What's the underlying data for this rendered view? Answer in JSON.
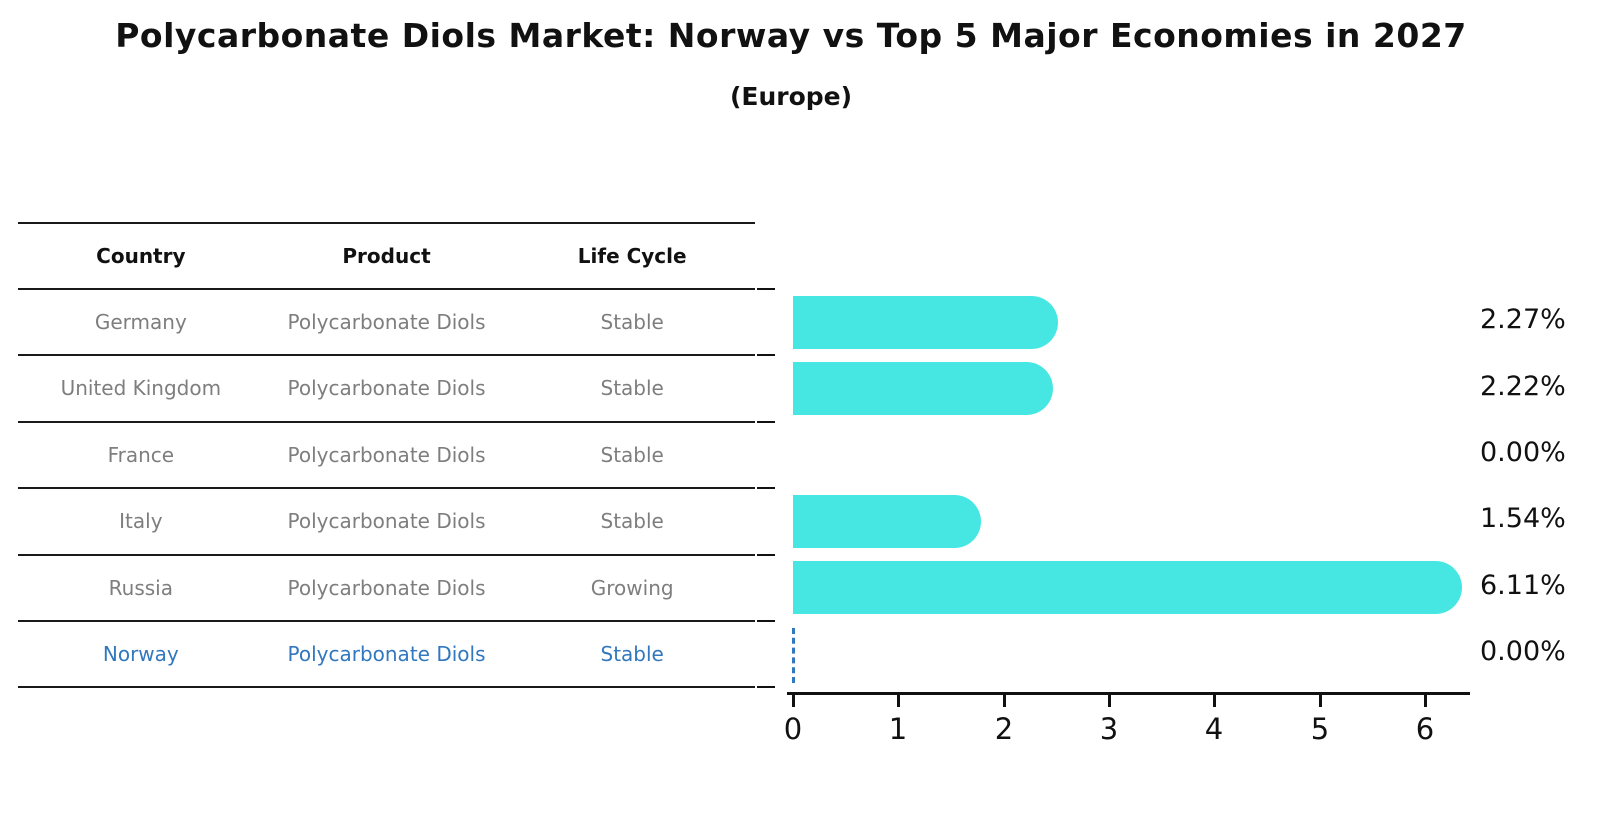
{
  "header": {
    "title": "Polycarbonate Diols Market: Norway vs Top 5 Major Economies in 2027",
    "subtitle": "(Europe)"
  },
  "table": {
    "headers": [
      "Country",
      "Product",
      "Life Cycle"
    ],
    "rows": [
      {
        "country": "Germany",
        "product": "Polycarbonate Diols",
        "life_cycle": "Stable",
        "highlighted": false
      },
      {
        "country": "United Kingdom",
        "product": "Polycarbonate Diols",
        "life_cycle": "Stable",
        "highlighted": false
      },
      {
        "country": "France",
        "product": "Polycarbonate Diols",
        "life_cycle": "Stable",
        "highlighted": false
      },
      {
        "country": "Italy",
        "product": "Polycarbonate Diols",
        "life_cycle": "Stable",
        "highlighted": false
      },
      {
        "country": "Russia",
        "product": "Polycarbonate Diols",
        "life_cycle": "Growing",
        "highlighted": false
      },
      {
        "country": "Norway",
        "product": "Polycarbonate Diols",
        "life_cycle": "Stable",
        "highlighted": true
      }
    ]
  },
  "chart_data": {
    "type": "bar",
    "orientation": "horizontal",
    "title": "Polycarbonate Diols Market: Norway vs Top 5 Major Economies in 2027 (Europe)",
    "categories": [
      "Germany",
      "United Kingdom",
      "France",
      "Italy",
      "Russia",
      "Norway"
    ],
    "values": [
      2.27,
      2.22,
      0.0,
      1.54,
      6.11,
      0.0
    ],
    "value_labels": [
      "2.27%",
      "2.22%",
      "0.00%",
      "1.54%",
      "6.11%",
      "0.00%"
    ],
    "xlabel": "",
    "ylabel": "",
    "xticks": [
      "0",
      "1",
      "2",
      "3",
      "4",
      "5",
      "6"
    ],
    "xlim": [
      0,
      6.45
    ],
    "grid": false,
    "legend": false,
    "bar_color": "#46e7e2",
    "highlight": {
      "category": "Norway",
      "color": "#3178be",
      "marker": "dashed-line-at-zero"
    }
  }
}
